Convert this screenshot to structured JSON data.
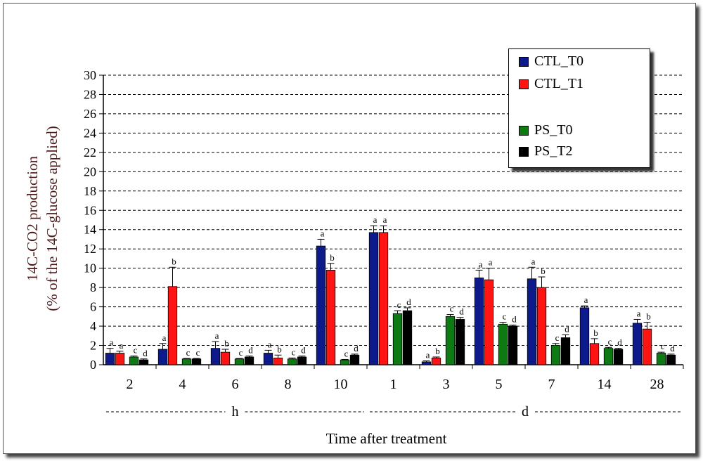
{
  "chart_data": {
    "type": "bar",
    "ylabel": [
      "14C-CO2 production",
      "(% of the 14C-glucose applied)"
    ],
    "xlabel": "Time after treatment",
    "ylim": [
      0,
      30
    ],
    "yticks": [
      0,
      2,
      4,
      6,
      8,
      10,
      12,
      14,
      16,
      18,
      20,
      22,
      24,
      26,
      28,
      30
    ],
    "grid": "dashed horizontal",
    "legend_position": "top-right",
    "categories": [
      "2",
      "4",
      "6",
      "8",
      "10",
      "1",
      "3",
      "5",
      "7",
      "14",
      "28"
    ],
    "groups": [
      {
        "label": "h",
        "categories": [
          "2",
          "4",
          "6",
          "8",
          "10"
        ]
      },
      {
        "label": "d",
        "categories": [
          "1",
          "3",
          "5",
          "7",
          "14",
          "28"
        ]
      }
    ],
    "series": [
      {
        "name": "CTL_T0",
        "color": "#0d1a8c",
        "values": [
          1.2,
          1.6,
          1.7,
          1.2,
          12.3,
          13.7,
          0.3,
          9.0,
          8.9,
          5.9,
          4.3
        ],
        "errors": [
          0.5,
          0.6,
          0.7,
          0.3,
          0.7,
          0.7,
          0.1,
          0.8,
          1.2,
          0.2,
          0.4
        ],
        "labels": [
          "a",
          "a",
          "a",
          "a",
          "a",
          "a",
          "a",
          "a",
          "a",
          "a",
          "a"
        ]
      },
      {
        "name": "CTL_T1",
        "color": "#ff1414",
        "values": [
          1.2,
          8.1,
          1.3,
          0.7,
          9.8,
          13.7,
          0.7,
          8.8,
          8.0,
          2.2,
          3.7
        ],
        "errors": [
          0.2,
          2.0,
          0.3,
          0.3,
          0.7,
          0.7,
          0.1,
          1.2,
          1.1,
          0.5,
          0.7
        ],
        "labels": [
          "a",
          "b",
          "b",
          "b",
          "b",
          "a",
          "b",
          "a",
          "b",
          "b",
          "b"
        ]
      },
      {
        "name": "PS_T0",
        "color": "#0d7a14",
        "values": [
          0.8,
          0.6,
          0.6,
          0.6,
          0.5,
          5.3,
          5.0,
          4.2,
          2.0,
          1.7,
          1.2
        ],
        "errors": [
          0.1,
          0.05,
          0.05,
          0.1,
          0.05,
          0.3,
          0.2,
          0.2,
          0.2,
          0.1,
          0.1
        ],
        "labels": [
          "c",
          "c",
          "c",
          "c",
          "c",
          "c",
          "c",
          "c",
          "c",
          "c",
          "c"
        ]
      },
      {
        "name": "PS_T2",
        "color": "#000000",
        "values": [
          0.5,
          0.6,
          0.8,
          0.8,
          1.0,
          5.6,
          4.7,
          4.0,
          2.8,
          1.6,
          1.0
        ],
        "errors": [
          0.1,
          0.05,
          0.1,
          0.1,
          0.1,
          0.3,
          0.2,
          0.1,
          0.3,
          0.1,
          0.1
        ],
        "labels": [
          "d",
          "c",
          "d",
          "d",
          "d",
          "d",
          "d",
          "d",
          "d",
          "d",
          "d"
        ]
      }
    ]
  }
}
